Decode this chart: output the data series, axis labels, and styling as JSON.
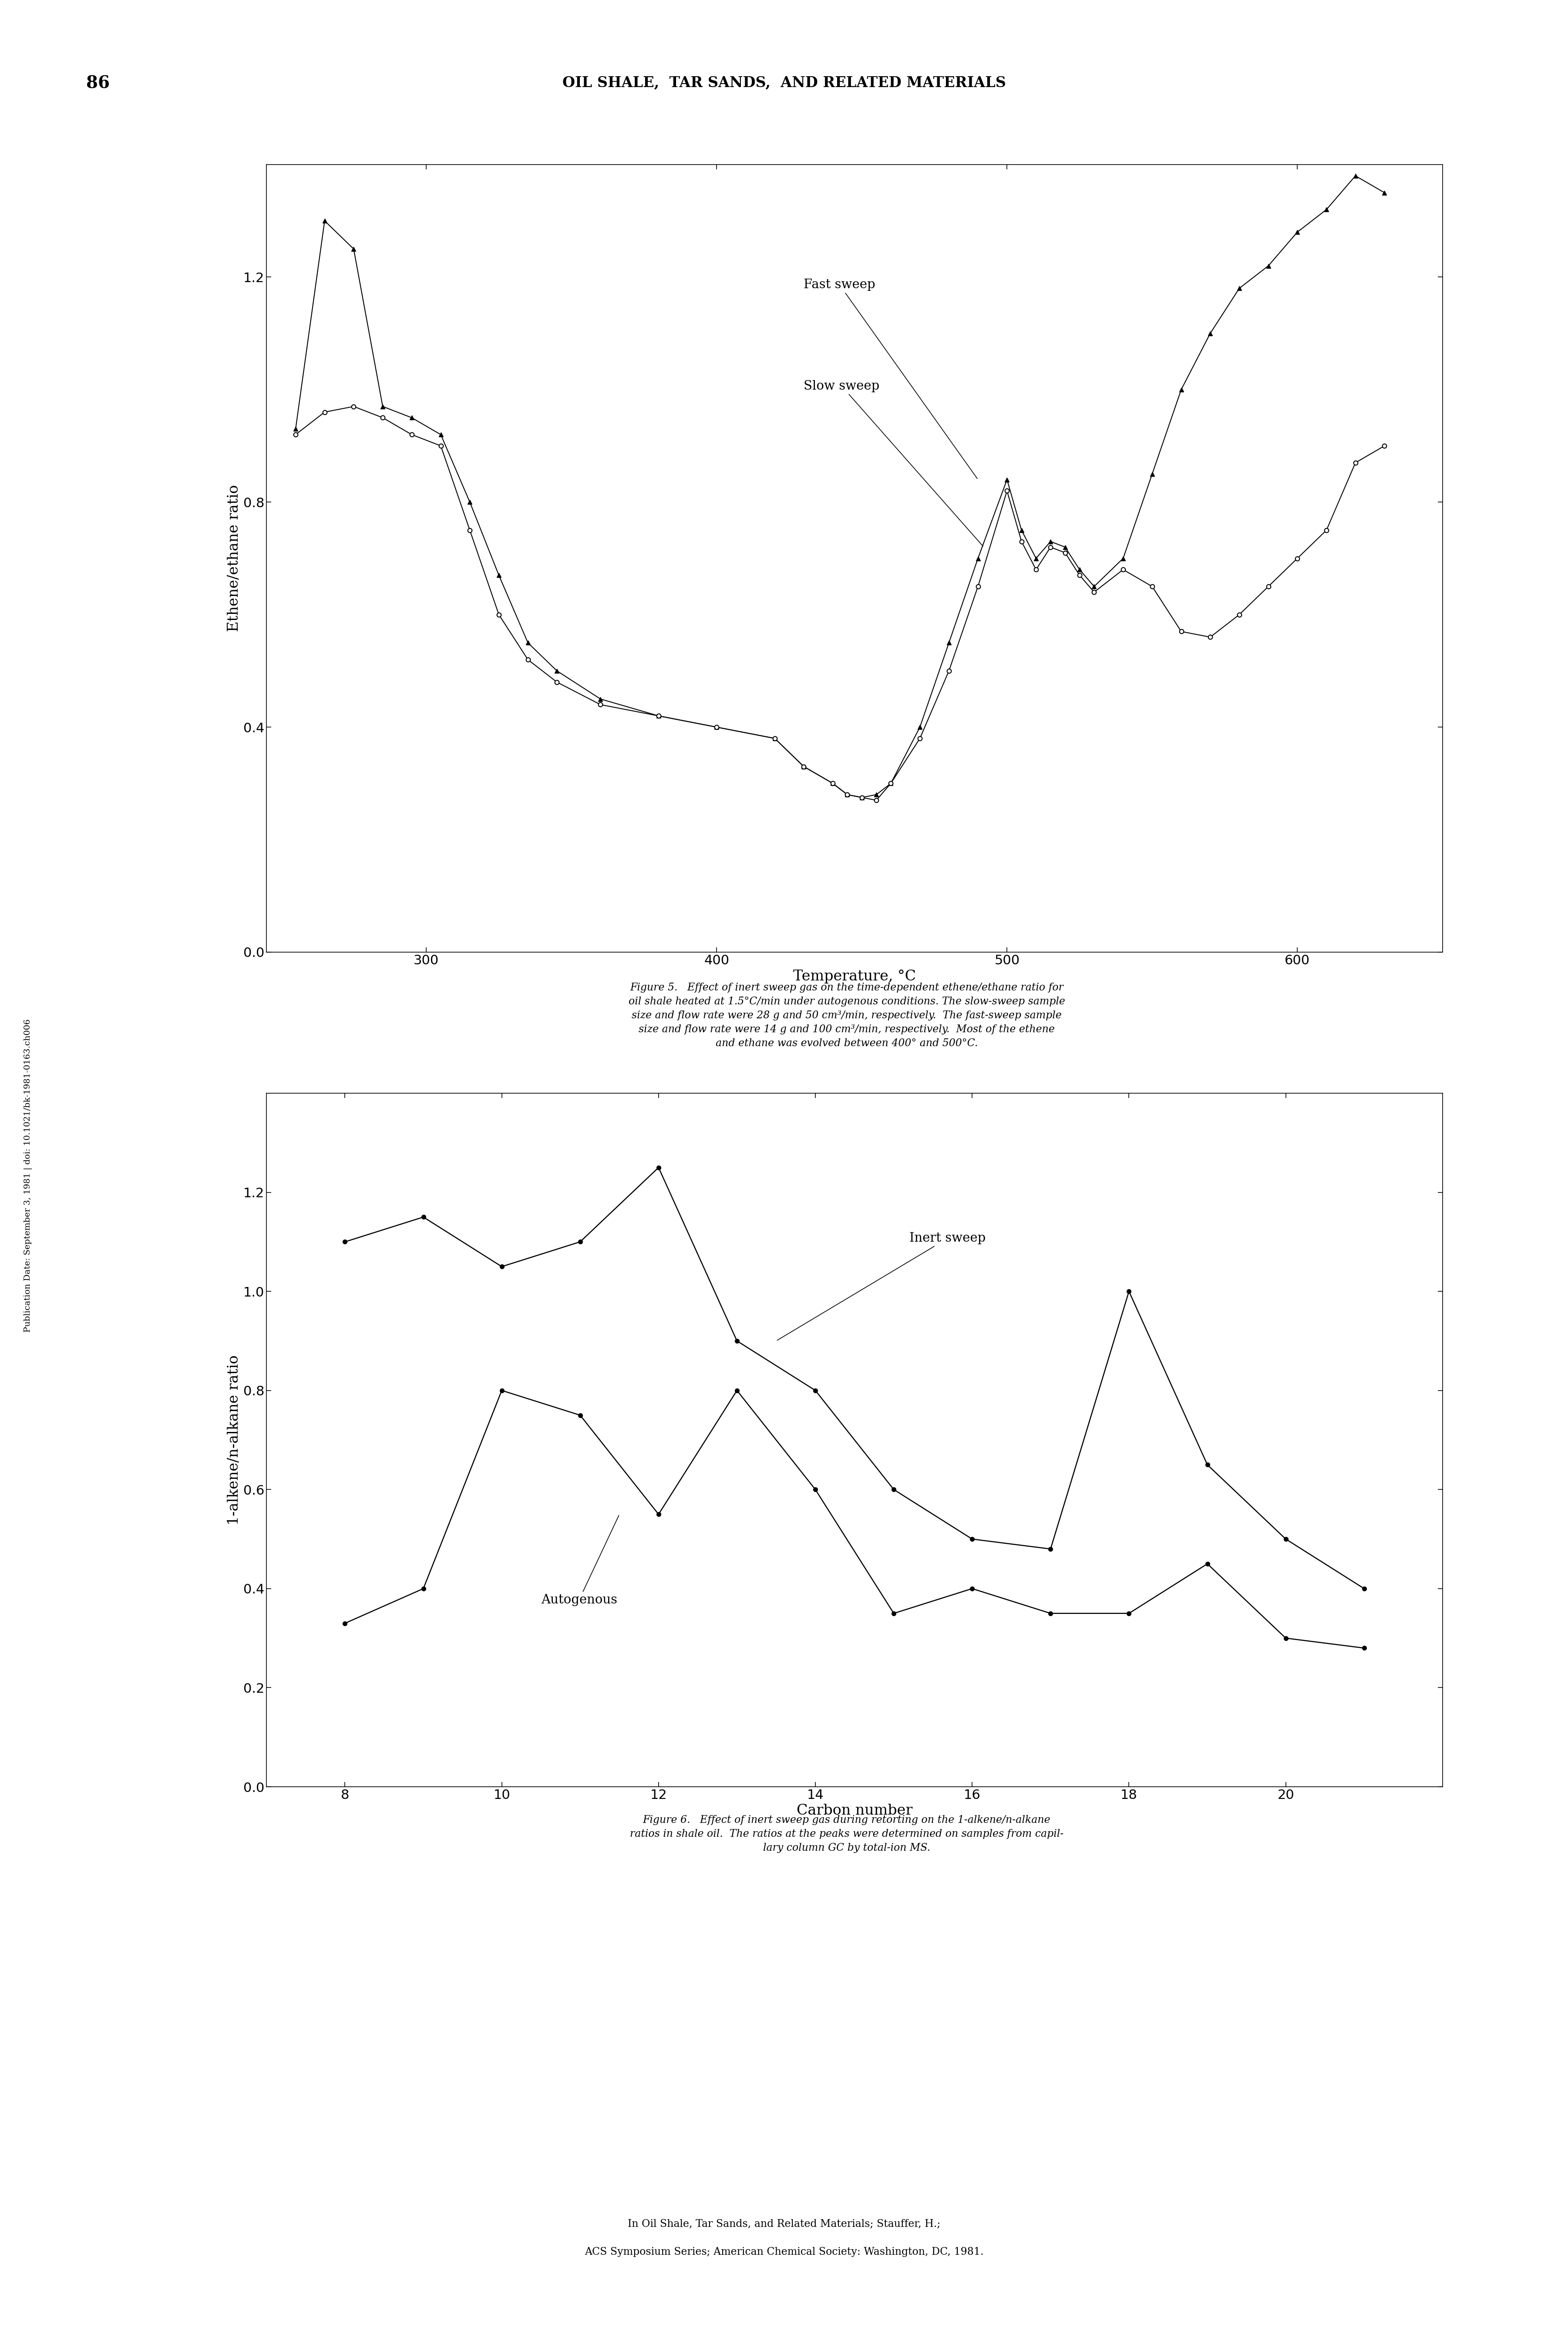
{
  "fig1": {
    "title": "",
    "xlabel": "Temperature, °C",
    "ylabel": "Ethene/ethane ratio",
    "xlim": [
      245,
      650
    ],
    "ylim": [
      0.0,
      1.4
    ],
    "yticks": [
      0.0,
      0.4,
      0.8,
      1.2
    ],
    "xticks": [
      300,
      400,
      500,
      600
    ],
    "fast_sweep_x": [
      255,
      265,
      275,
      285,
      295,
      305,
      315,
      325,
      335,
      345,
      360,
      380,
      400,
      420,
      430,
      440,
      445,
      450,
      455,
      460,
      470,
      480,
      490,
      500,
      505,
      510,
      515,
      520,
      525,
      530,
      540,
      550,
      560,
      570,
      580,
      590,
      600,
      610,
      620,
      630
    ],
    "fast_sweep_y": [
      0.93,
      1.3,
      1.25,
      0.97,
      0.95,
      0.92,
      0.8,
      0.67,
      0.55,
      0.5,
      0.45,
      0.42,
      0.4,
      0.38,
      0.33,
      0.3,
      0.28,
      0.275,
      0.28,
      0.3,
      0.4,
      0.55,
      0.7,
      0.84,
      0.75,
      0.7,
      0.73,
      0.72,
      0.68,
      0.65,
      0.7,
      0.85,
      1.0,
      1.1,
      1.18,
      1.22,
      1.28,
      1.32,
      1.38,
      1.35
    ],
    "slow_sweep_x": [
      255,
      265,
      275,
      285,
      295,
      305,
      315,
      325,
      335,
      345,
      360,
      380,
      400,
      420,
      430,
      440,
      445,
      450,
      455,
      460,
      470,
      480,
      490,
      500,
      505,
      510,
      515,
      520,
      525,
      530,
      540,
      550,
      560,
      570,
      580,
      590,
      600,
      610,
      620,
      630
    ],
    "slow_sweep_y": [
      0.92,
      0.96,
      0.97,
      0.95,
      0.92,
      0.9,
      0.75,
      0.6,
      0.52,
      0.48,
      0.44,
      0.42,
      0.4,
      0.38,
      0.33,
      0.3,
      0.28,
      0.275,
      0.27,
      0.3,
      0.38,
      0.5,
      0.65,
      0.82,
      0.73,
      0.68,
      0.72,
      0.71,
      0.67,
      0.64,
      0.68,
      0.65,
      0.57,
      0.56,
      0.6,
      0.65,
      0.7,
      0.75,
      0.87,
      0.9
    ],
    "fast_label": "Fast sweep",
    "slow_label": "Slow sweep"
  },
  "fig2": {
    "title": "",
    "xlabel": "Carbon number",
    "ylabel": "1-alkene/n-alkane ratio",
    "xlim": [
      7,
      22
    ],
    "ylim": [
      0.0,
      1.4
    ],
    "yticks": [
      0,
      0.2,
      0.4,
      0.6,
      0.8,
      1.0,
      1.2
    ],
    "xticks": [
      8,
      10,
      12,
      14,
      16,
      18,
      20
    ],
    "inert_x": [
      8,
      9,
      10,
      11,
      12,
      13,
      14,
      15,
      16,
      17,
      18,
      19,
      20,
      21
    ],
    "inert_y": [
      1.1,
      1.15,
      1.05,
      1.1,
      1.25,
      0.9,
      0.8,
      0.6,
      0.5,
      0.48,
      1.0,
      0.65,
      0.5,
      0.4
    ],
    "autogenous_x": [
      8,
      9,
      10,
      11,
      12,
      13,
      14,
      15,
      16,
      17,
      18,
      19,
      20,
      21
    ],
    "autogenous_y": [
      0.33,
      0.4,
      0.8,
      0.75,
      0.55,
      0.8,
      0.6,
      0.35,
      0.4,
      0.35,
      0.35,
      0.45,
      0.3,
      0.28
    ],
    "inert_label": "Inert sweep",
    "auto_label": "Autogenous"
  },
  "page_number": "86",
  "page_header": "OIL SHALE,  TAR SANDS,  AND RELATED MATERIALS",
  "fig5_caption_line1": "Figure 5.   Effect of inert sweep gas on the time-dependent ethene/ethane ratio for",
  "fig5_caption_line2": "oil shale heated at 1.5°C/min under autogenous conditions. The slow-sweep sample",
  "fig5_caption_line3": "size and flow rate were 28 g and 50 cm³/min, respectively.  The fast-sweep sample",
  "fig5_caption_line4": "size and flow rate were 14 g and 100 cm³/min, respectively.  Most of the ethene",
  "fig5_caption_line5": "and ethane was evolved between 400° and 500°C.",
  "fig6_caption_line1": "Figure 6.   Effect of inert sweep gas during retorting on the 1-alkene/n-alkane",
  "fig6_caption_line2": "ratios in shale oil.  The ratios at the peaks were determined on samples from capil-",
  "fig6_caption_line3": "lary column GC by total-ion MS.",
  "footer_line1": "In Oil Shale, Tar Sands, and Related Materials; Stauffer, H.;",
  "footer_line2": "ACS Symposium Series; American Chemical Society: Washington, DC, 1981.",
  "sidebar_text": "Publication Date: September 3, 1981 | doi: 10.1021/bk-1981-0163.ch006"
}
